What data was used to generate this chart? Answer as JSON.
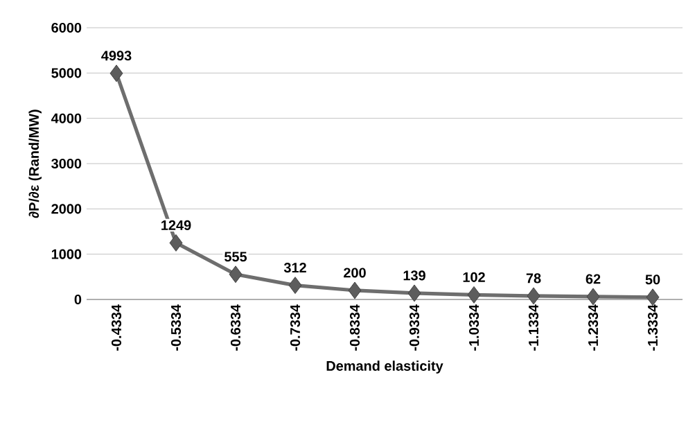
{
  "chart_data": {
    "type": "line",
    "xlabel": "Demand elasticity",
    "ylabel": "∂P/∂ε (Rand/MW)",
    "categories": [
      "-0.4334",
      "-0.5334",
      "-0.6334",
      "-0.7334",
      "-0.8334",
      "-0.9334",
      "-1.0334",
      "-1.1334",
      "-1.2334",
      "-1.3334"
    ],
    "values": [
      4993,
      1249,
      555,
      312,
      200,
      139,
      102,
      78,
      62,
      50
    ],
    "color": "#6e6e6e",
    "marker": "diamond",
    "line_style": "solid",
    "data_labels": true,
    "grid": "y",
    "ylim": [
      0,
      6000
    ],
    "yticks": [
      0,
      1000,
      2000,
      3000,
      4000,
      5000,
      6000
    ]
  }
}
